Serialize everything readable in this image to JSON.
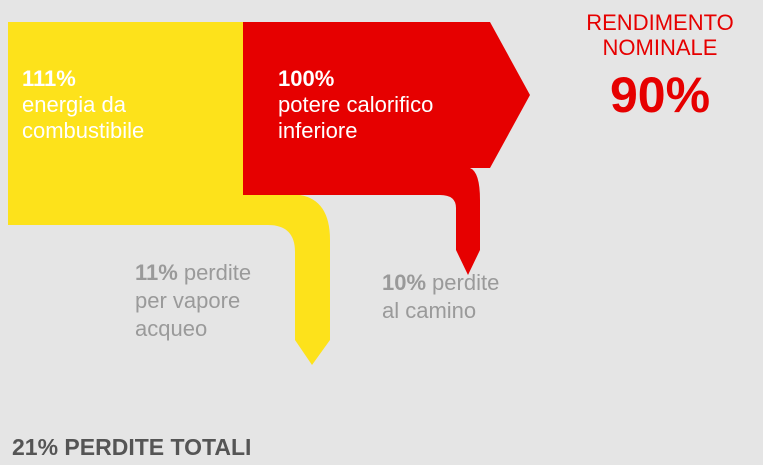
{
  "input": {
    "value": "111%",
    "lines": [
      "energia da",
      "combustibile"
    ]
  },
  "useful": {
    "value": "100%",
    "lines": [
      "potere calorifico",
      "inferiore"
    ]
  },
  "loss_vapor": {
    "value": "11%",
    "lines": [
      "perdite",
      "per vapore",
      "acqueo"
    ]
  },
  "loss_flue": {
    "value": "10%",
    "lines": [
      "perdite",
      "al camino"
    ]
  },
  "efficiency": {
    "lines": [
      "RENDIMENTO",
      "NOMINALE"
    ],
    "value": "90%"
  },
  "total": "21% PERDITE TOTALI"
}
